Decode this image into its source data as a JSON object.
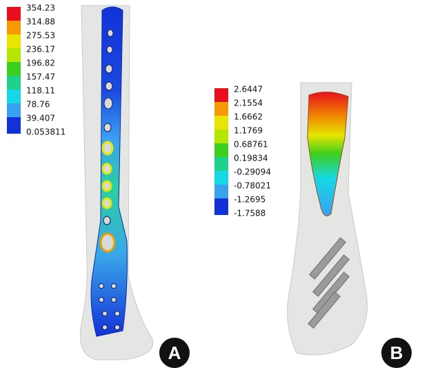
{
  "panels": [
    {
      "label": "A",
      "legend": {
        "labels": [
          "354.23",
          "314.88",
          "275.53",
          "236.17",
          "196.82",
          "157.47",
          "118.11",
          "78.76",
          "39.407",
          "0.053811"
        ],
        "colors": [
          "#e8101c",
          "#f59a00",
          "#e6e600",
          "#b4e600",
          "#3ccf1e",
          "#1ed28c",
          "#16d8e4",
          "#3aa0f0",
          "#1232d8"
        ]
      }
    },
    {
      "label": "B",
      "legend": {
        "labels": [
          "2.6447",
          "2.1554",
          "1.6662",
          "1.1769",
          "0.68761",
          "0.19834",
          "-0.29094",
          "-0.78021",
          "-1.2695",
          "-1.7588"
        ],
        "colors": [
          "#e8101c",
          "#f59a00",
          "#e6e600",
          "#b4e600",
          "#3ccf1e",
          "#1ed28c",
          "#16d8e4",
          "#3aa0f0",
          "#1232d8"
        ]
      }
    }
  ]
}
